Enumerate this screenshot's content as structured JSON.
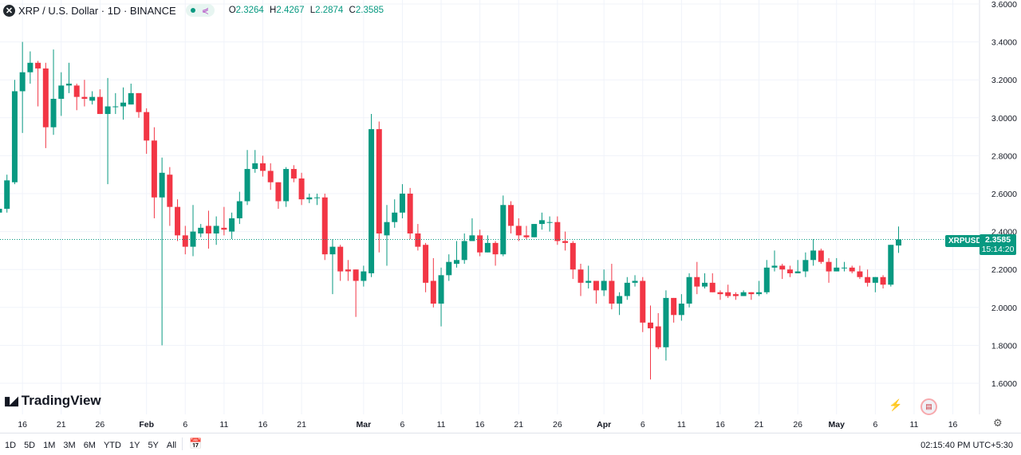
{
  "header": {
    "symbol_title": "XRP / U.S. Dollar · 1D · BINANCE",
    "ohlc": {
      "o_label": "O",
      "o": "2.3264",
      "h_label": "H",
      "h": "2.4267",
      "l_label": "L",
      "l": "2.2874",
      "c_label": "C",
      "c": "2.3585"
    }
  },
  "watermark": "TradingView",
  "price_label": {
    "symbol": "XRPUSD",
    "price": "2.3585",
    "countdown": "15:14:20"
  },
  "colors": {
    "up": "#089981",
    "down": "#F23645",
    "grid": "#f0f3fa"
  },
  "bottom_bar": {
    "timeframes": [
      "1D",
      "5D",
      "1M",
      "3M",
      "6M",
      "YTD",
      "1Y",
      "5Y",
      "All"
    ],
    "clock": "02:15:40 PM UTC+5:30"
  },
  "icons": [
    "x-logo-icon",
    "share-icon",
    "calendar-goto-icon",
    "lightning-icon",
    "us-flag-icon",
    "gear-icon"
  ],
  "chart_data": {
    "type": "candlestick",
    "ylim": [
      1.6,
      3.6
    ],
    "y_ticks": [
      "3.6000",
      "3.4000",
      "3.2000",
      "3.0000",
      "2.8000",
      "2.6000",
      "2.4000",
      "2.2000",
      "2.0000",
      "1.8000",
      "1.6000"
    ],
    "x_ticks": [
      {
        "label": "16",
        "date": "Jan 16"
      },
      {
        "label": "21",
        "date": "Jan 21"
      },
      {
        "label": "26",
        "date": "Jan 26"
      },
      {
        "label": "Feb",
        "date": "Feb 1"
      },
      {
        "label": "6",
        "date": "Feb 6"
      },
      {
        "label": "11",
        "date": "Feb 11"
      },
      {
        "label": "16",
        "date": "Feb 16"
      },
      {
        "label": "21",
        "date": "Feb 21"
      },
      {
        "label": "Mar",
        "date": "Mar 1"
      },
      {
        "label": "6",
        "date": "Mar 6"
      },
      {
        "label": "11",
        "date": "Mar 11"
      },
      {
        "label": "16",
        "date": "Mar 16"
      },
      {
        "label": "21",
        "date": "Mar 21"
      },
      {
        "label": "26",
        "date": "Mar 26"
      },
      {
        "label": "Apr",
        "date": "Apr 1"
      },
      {
        "label": "6",
        "date": "Apr 6"
      },
      {
        "label": "11",
        "date": "Apr 11"
      },
      {
        "label": "16",
        "date": "Apr 16"
      },
      {
        "label": "21",
        "date": "Apr 21"
      },
      {
        "label": "26",
        "date": "Apr 26"
      },
      {
        "label": "May",
        "date": "May 1"
      },
      {
        "label": "6",
        "date": "May 6"
      },
      {
        "label": "11",
        "date": "May 11"
      },
      {
        "label": "16",
        "date": "May 16"
      }
    ],
    "columns": [
      "date",
      "open",
      "high",
      "low",
      "close"
    ],
    "candles": [
      [
        "Jan 13",
        2.5,
        2.53,
        2.48,
        2.52
      ],
      [
        "Jan 14",
        2.52,
        2.7,
        2.5,
        2.67
      ],
      [
        "Jan 15",
        2.66,
        3.2,
        2.65,
        3.14
      ],
      [
        "Jan 16",
        3.14,
        3.4,
        2.92,
        3.24
      ],
      [
        "Jan 17",
        3.24,
        3.35,
        3.18,
        3.29
      ],
      [
        "Jan 18",
        3.29,
        3.3,
        3.06,
        3.26
      ],
      [
        "Jan 19",
        3.26,
        3.29,
        2.84,
        2.95
      ],
      [
        "Jan 20",
        2.95,
        3.36,
        2.91,
        3.1
      ],
      [
        "Jan 21",
        3.1,
        3.24,
        3.01,
        3.17
      ],
      [
        "Jan 22",
        3.17,
        3.29,
        3.13,
        3.18
      ],
      [
        "Jan 23",
        3.17,
        3.18,
        3.04,
        3.11
      ],
      [
        "Jan 24",
        3.11,
        3.2,
        3.06,
        3.1
      ],
      [
        "Jan 25",
        3.09,
        3.14,
        3.07,
        3.11
      ],
      [
        "Jan 26",
        3.11,
        3.15,
        3.02,
        3.02
      ],
      [
        "Jan 27",
        3.02,
        3.21,
        2.65,
        3.06
      ],
      [
        "Jan 28",
        3.06,
        3.13,
        3.02,
        3.06
      ],
      [
        "Jan 29",
        3.06,
        3.16,
        2.99,
        3.08
      ],
      [
        "Jan 30",
        3.07,
        3.18,
        3.07,
        3.13
      ],
      [
        "Jan 31",
        3.13,
        3.13,
        3.0,
        3.03
      ],
      [
        "Feb 1",
        3.03,
        3.05,
        2.81,
        2.88
      ],
      [
        "Feb 2",
        2.88,
        2.95,
        2.47,
        2.58
      ],
      [
        "Feb 3",
        2.58,
        2.79,
        1.8,
        2.71
      ],
      [
        "Feb 4",
        2.7,
        2.74,
        2.43,
        2.53
      ],
      [
        "Feb 5",
        2.53,
        2.57,
        2.35,
        2.38
      ],
      [
        "Feb 6",
        2.38,
        2.43,
        2.28,
        2.32
      ],
      [
        "Feb 7",
        2.32,
        2.54,
        2.27,
        2.4
      ],
      [
        "Feb 8",
        2.39,
        2.44,
        2.37,
        2.42
      ],
      [
        "Feb 9",
        2.43,
        2.51,
        2.31,
        2.39
      ],
      [
        "Feb 10",
        2.39,
        2.48,
        2.33,
        2.43
      ],
      [
        "Feb 11",
        2.42,
        2.53,
        2.38,
        2.41
      ],
      [
        "Feb 12",
        2.4,
        2.5,
        2.36,
        2.47
      ],
      [
        "Feb 13",
        2.47,
        2.61,
        2.44,
        2.56
      ],
      [
        "Feb 14",
        2.56,
        2.83,
        2.54,
        2.73
      ],
      [
        "Feb 15",
        2.73,
        2.83,
        2.71,
        2.76
      ],
      [
        "Feb 16",
        2.76,
        2.8,
        2.69,
        2.72
      ],
      [
        "Feb 17",
        2.72,
        2.76,
        2.62,
        2.66
      ],
      [
        "Feb 18",
        2.66,
        2.66,
        2.52,
        2.56
      ],
      [
        "Feb 19",
        2.56,
        2.74,
        2.53,
        2.73
      ],
      [
        "Feb 20",
        2.73,
        2.75,
        2.66,
        2.68
      ],
      [
        "Feb 21",
        2.68,
        2.71,
        2.54,
        2.57
      ],
      [
        "Feb 22",
        2.57,
        2.6,
        2.55,
        2.58
      ],
      [
        "Feb 23",
        2.58,
        2.6,
        2.54,
        2.58
      ],
      [
        "Feb 24",
        2.58,
        2.6,
        2.25,
        2.28
      ],
      [
        "Feb 25",
        2.28,
        2.36,
        2.07,
        2.32
      ],
      [
        "Feb 26",
        2.32,
        2.33,
        2.14,
        2.19
      ],
      [
        "Feb 27",
        2.2,
        2.25,
        2.14,
        2.19
      ],
      [
        "Feb 28",
        2.2,
        2.2,
        1.95,
        2.14
      ],
      [
        "Mar 1",
        2.14,
        2.22,
        2.11,
        2.19
      ],
      [
        "Mar 2",
        2.18,
        3.02,
        2.16,
        2.94
      ],
      [
        "Mar 3",
        2.94,
        2.98,
        2.29,
        2.39
      ],
      [
        "Mar 4",
        2.38,
        2.54,
        2.22,
        2.45
      ],
      [
        "Mar 5",
        2.45,
        2.57,
        2.42,
        2.5
      ],
      [
        "Mar 6",
        2.5,
        2.65,
        2.47,
        2.6
      ],
      [
        "Mar 7",
        2.6,
        2.63,
        2.36,
        2.39
      ],
      [
        "Mar 8",
        2.39,
        2.44,
        2.3,
        2.32
      ],
      [
        "Mar 9",
        2.33,
        2.34,
        2.08,
        2.13
      ],
      [
        "Mar 10",
        2.14,
        2.26,
        2.0,
        2.02
      ],
      [
        "Mar 11",
        2.02,
        2.21,
        1.9,
        2.17
      ],
      [
        "Mar 12",
        2.17,
        2.28,
        2.14,
        2.24
      ],
      [
        "Mar 13",
        2.23,
        2.35,
        2.21,
        2.25
      ],
      [
        "Mar 14",
        2.25,
        2.39,
        2.23,
        2.35
      ],
      [
        "Mar 15",
        2.35,
        2.47,
        2.35,
        2.38
      ],
      [
        "Mar 16",
        2.38,
        2.41,
        2.27,
        2.29
      ],
      [
        "Mar 17",
        2.29,
        2.38,
        2.29,
        2.34
      ],
      [
        "Mar 18",
        2.34,
        2.35,
        2.22,
        2.28
      ],
      [
        "Mar 19",
        2.28,
        2.59,
        2.27,
        2.54
      ],
      [
        "Mar 20",
        2.54,
        2.56,
        2.39,
        2.43
      ],
      [
        "Mar 21",
        2.43,
        2.47,
        2.35,
        2.38
      ],
      [
        "Mar 22",
        2.38,
        2.43,
        2.36,
        2.37
      ],
      [
        "Mar 23",
        2.37,
        2.44,
        2.37,
        2.44
      ],
      [
        "Mar 24",
        2.44,
        2.5,
        2.41,
        2.46
      ],
      [
        "Mar 25",
        2.45,
        2.48,
        2.4,
        2.45
      ],
      [
        "Mar 26",
        2.45,
        2.48,
        2.33,
        2.35
      ],
      [
        "Mar 27",
        2.35,
        2.4,
        2.3,
        2.34
      ],
      [
        "Mar 28",
        2.34,
        2.35,
        2.15,
        2.2
      ],
      [
        "Mar 29",
        2.2,
        2.23,
        2.06,
        2.13
      ],
      [
        "Mar 30",
        2.13,
        2.22,
        2.1,
        2.14
      ],
      [
        "Mar 31",
        2.14,
        2.14,
        2.02,
        2.09
      ],
      [
        "Apr 1",
        2.09,
        2.2,
        2.06,
        2.14
      ],
      [
        "Apr 2",
        2.14,
        2.23,
        1.99,
        2.02
      ],
      [
        "Apr 3",
        2.02,
        2.08,
        1.96,
        2.06
      ],
      [
        "Apr 4",
        2.06,
        2.16,
        2.04,
        2.13
      ],
      [
        "Apr 5",
        2.13,
        2.17,
        2.11,
        2.14
      ],
      [
        "Apr 6",
        2.14,
        2.16,
        1.87,
        1.92
      ],
      [
        "Apr 7",
        1.92,
        2.01,
        1.62,
        1.89
      ],
      [
        "Apr 8",
        1.9,
        1.97,
        1.78,
        1.79
      ],
      [
        "Apr 9",
        1.79,
        2.09,
        1.72,
        2.05
      ],
      [
        "Apr 10",
        2.05,
        2.05,
        1.92,
        1.96
      ],
      [
        "Apr 11",
        1.96,
        2.07,
        1.93,
        2.02
      ],
      [
        "Apr 12",
        2.02,
        2.18,
        2.0,
        2.16
      ],
      [
        "Apr 13",
        2.16,
        2.24,
        2.07,
        2.11
      ],
      [
        "Apr 14",
        2.11,
        2.18,
        2.1,
        2.13
      ],
      [
        "Apr 15",
        2.13,
        2.18,
        2.08,
        2.08
      ],
      [
        "Apr 16",
        2.08,
        2.09,
        2.04,
        2.07
      ],
      [
        "Apr 17",
        2.08,
        2.12,
        2.05,
        2.06
      ],
      [
        "Apr 18",
        2.07,
        2.08,
        2.04,
        2.06
      ],
      [
        "Apr 19",
        2.06,
        2.09,
        2.06,
        2.08
      ],
      [
        "Apr 20",
        2.08,
        2.08,
        2.04,
        2.07
      ],
      [
        "Apr 21",
        2.07,
        2.14,
        2.06,
        2.08
      ],
      [
        "Apr 22",
        2.08,
        2.25,
        2.07,
        2.21
      ],
      [
        "Apr 23",
        2.21,
        2.3,
        2.19,
        2.22
      ],
      [
        "Apr 24",
        2.22,
        2.23,
        2.15,
        2.2
      ],
      [
        "Apr 25",
        2.2,
        2.22,
        2.16,
        2.18
      ],
      [
        "Apr 26",
        2.18,
        2.25,
        2.18,
        2.19
      ],
      [
        "Apr 27",
        2.19,
        2.29,
        2.16,
        2.25
      ],
      [
        "Apr 28",
        2.25,
        2.36,
        2.22,
        2.3
      ],
      [
        "Apr 29",
        2.3,
        2.31,
        2.23,
        2.24
      ],
      [
        "Apr 30",
        2.24,
        2.26,
        2.13,
        2.19
      ],
      [
        "May 1",
        2.19,
        2.26,
        2.19,
        2.21
      ],
      [
        "May 2",
        2.21,
        2.24,
        2.19,
        2.21
      ],
      [
        "May 3",
        2.21,
        2.22,
        2.18,
        2.19
      ],
      [
        "May 4",
        2.19,
        2.22,
        2.15,
        2.16
      ],
      [
        "May 5",
        2.16,
        2.2,
        2.11,
        2.13
      ],
      [
        "May 6",
        2.13,
        2.16,
        2.08,
        2.16
      ],
      [
        "May 7",
        2.16,
        2.17,
        2.1,
        2.12
      ],
      [
        "May 8",
        2.12,
        2.33,
        2.11,
        2.33
      ],
      [
        "May 9",
        2.3264,
        2.4267,
        2.2874,
        2.3585
      ]
    ],
    "last_price": 2.3585
  }
}
